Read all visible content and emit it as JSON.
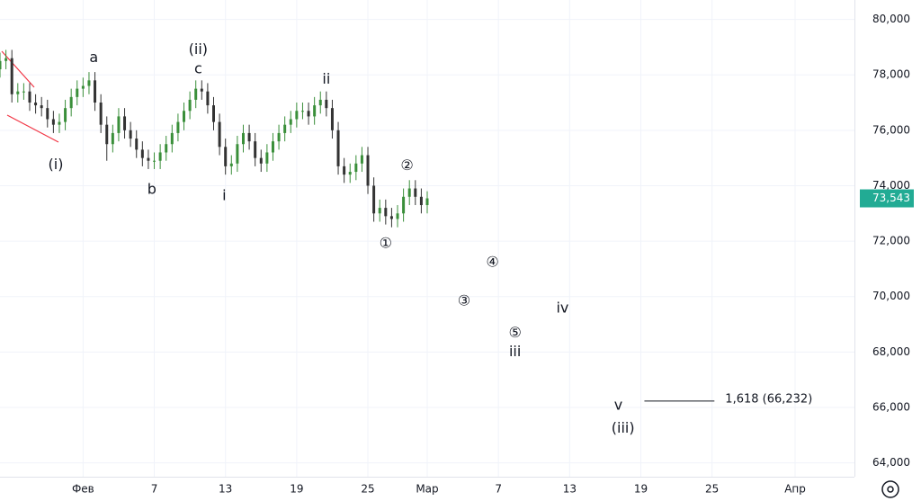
{
  "chart_data": {
    "type": "candlestick",
    "xlim": [
      25,
      97
    ],
    "ylim": [
      63500,
      80700
    ],
    "xticks": [
      {
        "value": 32,
        "label": "Фев"
      },
      {
        "value": 38,
        "label": "7"
      },
      {
        "value": 44,
        "label": "13"
      },
      {
        "value": 50,
        "label": "19"
      },
      {
        "value": 56,
        "label": "25"
      },
      {
        "value": 61,
        "label": "Мар"
      },
      {
        "value": 67,
        "label": "7"
      },
      {
        "value": 73,
        "label": "13"
      },
      {
        "value": 79,
        "label": "19"
      },
      {
        "value": 85,
        "label": "25"
      },
      {
        "value": 92,
        "label": "Апр"
      }
    ],
    "yticks": [
      {
        "value": 64000,
        "label": "64,000"
      },
      {
        "value": 66000,
        "label": "66,000"
      },
      {
        "value": 68000,
        "label": "68,000"
      },
      {
        "value": 70000,
        "label": "70,000"
      },
      {
        "value": 72000,
        "label": "72,000"
      },
      {
        "value": 74000,
        "label": "74,000"
      },
      {
        "value": 76000,
        "label": "76,000"
      },
      {
        "value": 78000,
        "label": "78,000"
      },
      {
        "value": 80000,
        "label": "80,000"
      }
    ],
    "grid": true,
    "up_color": "#3a8f3a",
    "down_color": "#333333",
    "last_color": "#22ab94",
    "x": [
      25,
      25.5,
      26,
      26.5,
      27,
      27.5,
      28,
      28.5,
      29,
      29.5,
      30,
      30.5,
      31,
      31.5,
      32,
      32.5,
      33,
      33.5,
      34,
      34.5,
      35,
      35.5,
      36,
      36.5,
      37,
      37.5,
      38,
      38.5,
      39,
      39.5,
      40,
      40.5,
      41,
      41.5,
      42,
      42.5,
      43,
      43.5,
      44,
      44.5,
      45,
      45.5,
      46,
      46.5,
      47,
      47.5,
      48,
      48.5,
      49,
      49.5,
      50,
      50.5,
      51,
      51.5,
      52,
      52.5,
      53,
      53.5,
      54,
      54.5,
      55,
      55.5,
      56,
      56.5,
      57,
      57.5,
      58,
      58.5,
      59,
      59.5,
      60,
      60.5,
      61
    ],
    "open": [
      78200,
      78500,
      78600,
      77300,
      77400,
      77400,
      77000,
      76900,
      76800,
      76400,
      76200,
      76300,
      76800,
      77200,
      77500,
      77600,
      77800,
      77000,
      76200,
      75500,
      75900,
      76500,
      76000,
      75700,
      75300,
      75000,
      74900,
      74900,
      75200,
      75500,
      75900,
      76300,
      76700,
      77100,
      77500,
      77400,
      76900,
      76300,
      75400,
      74700,
      74800,
      75500,
      75900,
      75600,
      75000,
      74800,
      75200,
      75600,
      75900,
      76200,
      76400,
      76700,
      76700,
      76500,
      76900,
      77100,
      76800,
      76000,
      74700,
      74400,
      74500,
      74800,
      75100,
      74000,
      73000,
      73200,
      72900,
      72800,
      73000,
      73600,
      73900,
      73600,
      73300
    ],
    "high": [
      78800,
      78900,
      78900,
      77700,
      77700,
      77700,
      77300,
      77200,
      77100,
      76700,
      76600,
      77100,
      77500,
      77800,
      77900,
      78100,
      78100,
      77300,
      76500,
      76200,
      76800,
      76800,
      76300,
      76000,
      75600,
      75300,
      75200,
      75500,
      75800,
      76200,
      76600,
      77000,
      77400,
      77800,
      77800,
      77700,
      77200,
      76600,
      75700,
      75100,
      75800,
      76200,
      76200,
      75900,
      75300,
      75500,
      75900,
      76200,
      76500,
      76700,
      77000,
      77000,
      77000,
      77200,
      77400,
      77400,
      77100,
      76300,
      75000,
      74800,
      75100,
      75400,
      75400,
      74300,
      73500,
      73500,
      73200,
      73300,
      73900,
      74200,
      74200,
      73900,
      73800
    ],
    "low": [
      77900,
      78200,
      77000,
      77000,
      77100,
      76700,
      76600,
      76500,
      76100,
      75900,
      75900,
      76000,
      76500,
      76900,
      77200,
      77300,
      76700,
      75900,
      74900,
      75200,
      75600,
      75700,
      75400,
      75000,
      74700,
      74600,
      74600,
      74600,
      74900,
      75200,
      75600,
      76000,
      76400,
      76800,
      77100,
      76600,
      76000,
      75100,
      74400,
      74400,
      74500,
      75200,
      75300,
      74700,
      74500,
      74500,
      74900,
      75300,
      75600,
      75900,
      76100,
      76400,
      76200,
      76200,
      76600,
      76500,
      75700,
      74400,
      74100,
      74100,
      74200,
      74500,
      73700,
      72700,
      72700,
      72600,
      72500,
      72500,
      72700,
      73300,
      73300,
      73000,
      73000
    ],
    "close": [
      78500,
      78600,
      77300,
      77400,
      77400,
      77000,
      76900,
      76800,
      76400,
      76200,
      76300,
      76800,
      77200,
      77500,
      77600,
      77800,
      77000,
      76200,
      75500,
      75900,
      76500,
      76000,
      75700,
      75300,
      75000,
      74900,
      74900,
      75200,
      75500,
      75900,
      76300,
      76700,
      77100,
      77500,
      77400,
      76900,
      76300,
      75400,
      74700,
      74800,
      75500,
      75900,
      75600,
      75000,
      74800,
      75200,
      75600,
      75900,
      76200,
      76400,
      76700,
      76700,
      76500,
      76900,
      77100,
      76800,
      76000,
      74700,
      74400,
      74500,
      74800,
      75100,
      74000,
      73000,
      73200,
      72900,
      72800,
      73000,
      73600,
      73900,
      73600,
      73300,
      73543
    ],
    "last_label": "73,543",
    "annotations": [
      {
        "text": "a",
        "x": 32.9,
        "y": 78600
      },
      {
        "text": "(ii)",
        "x": 41.7,
        "y": 78900
      },
      {
        "text": "c",
        "x": 41.7,
        "y": 78200
      },
      {
        "text": "(i)",
        "x": 29.7,
        "y": 74750
      },
      {
        "text": "b",
        "x": 37.8,
        "y": 73850
      },
      {
        "text": "i",
        "x": 43.9,
        "y": 73620
      },
      {
        "text": "ii",
        "x": 52.5,
        "y": 77830
      },
      {
        "text": "②",
        "x": 59.3,
        "y": 74720
      },
      {
        "text": "①",
        "x": 57.5,
        "y": 71900
      },
      {
        "text": "④",
        "x": 66.5,
        "y": 71220
      },
      {
        "text": "③",
        "x": 64.1,
        "y": 69830
      },
      {
        "text": "iv",
        "x": 72.4,
        "y": 69570
      },
      {
        "text": "⑤",
        "x": 68.4,
        "y": 68670
      },
      {
        "text": "iii",
        "x": 68.4,
        "y": 67990
      },
      {
        "text": "v",
        "x": 77.1,
        "y": 66070
      },
      {
        "text": "(iii)",
        "x": 77.5,
        "y": 65230
      }
    ],
    "fib": {
      "label": "1,618 (66,232)",
      "value": 66232,
      "x": [
        79.3,
        85.2
      ]
    }
  }
}
